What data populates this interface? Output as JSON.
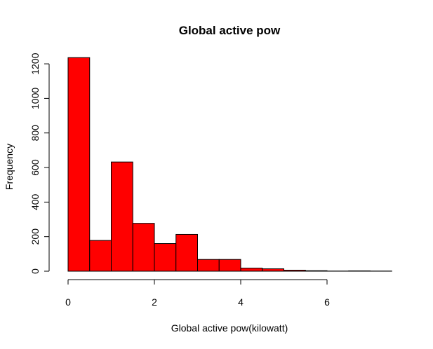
{
  "chart_data": {
    "type": "bar",
    "title": "Global active pow",
    "xlabel": "Global active pow(kilowatt)",
    "ylabel": "Frequency",
    "bins": [
      {
        "start": 0.0,
        "end": 0.5,
        "count": 1236
      },
      {
        "start": 0.5,
        "end": 1.0,
        "count": 178
      },
      {
        "start": 1.0,
        "end": 1.5,
        "count": 632
      },
      {
        "start": 1.5,
        "end": 2.0,
        "count": 277
      },
      {
        "start": 2.0,
        "end": 2.5,
        "count": 160
      },
      {
        "start": 2.5,
        "end": 3.0,
        "count": 213
      },
      {
        "start": 3.0,
        "end": 3.5,
        "count": 68
      },
      {
        "start": 3.5,
        "end": 4.0,
        "count": 68
      },
      {
        "start": 4.0,
        "end": 4.5,
        "count": 18
      },
      {
        "start": 4.5,
        "end": 5.0,
        "count": 14
      },
      {
        "start": 5.0,
        "end": 5.5,
        "count": 6
      },
      {
        "start": 5.5,
        "end": 6.0,
        "count": 3
      },
      {
        "start": 6.0,
        "end": 6.5,
        "count": 1
      },
      {
        "start": 6.5,
        "end": 7.0,
        "count": 2
      },
      {
        "start": 7.0,
        "end": 7.5,
        "count": 1
      }
    ],
    "xlim": [
      0,
      7.5
    ],
    "ylim": [
      0,
      1236
    ],
    "x_ticks": [
      0,
      2,
      4,
      6
    ],
    "y_ticks": [
      0,
      200,
      400,
      600,
      800,
      1000,
      1200
    ],
    "bar_fill": "#ff0000",
    "bar_border": "#000000",
    "grid": false,
    "legend": "none"
  }
}
